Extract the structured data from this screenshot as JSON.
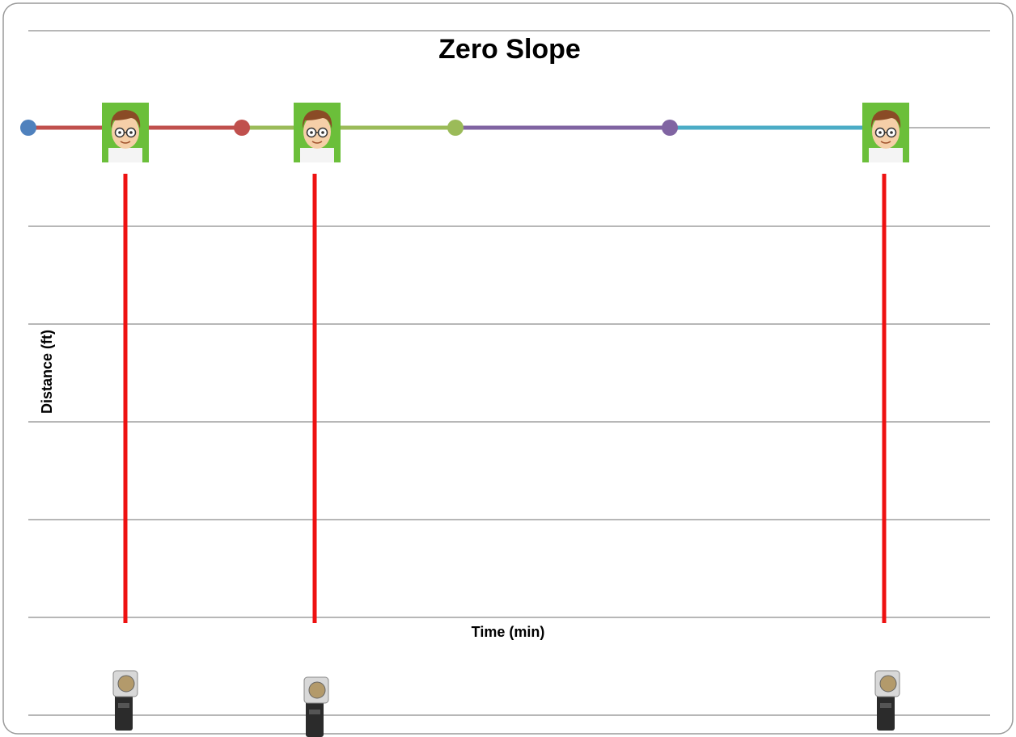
{
  "title": "Zero Slope",
  "y_axis_label": "Distance (ft)",
  "x_axis_label": "Time (min)"
}
